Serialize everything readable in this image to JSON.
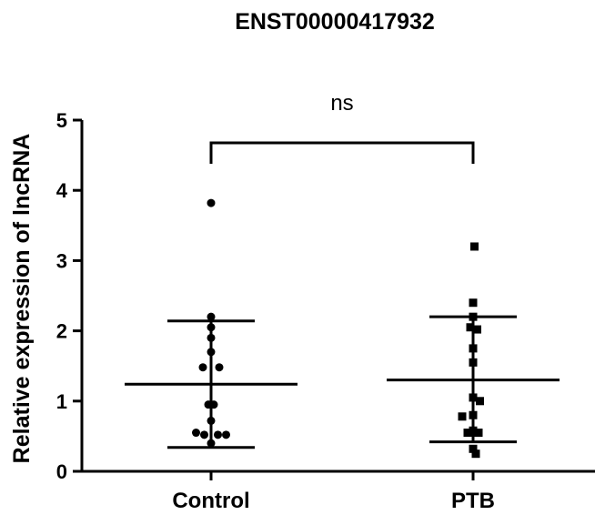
{
  "chart_data": {
    "type": "scatter",
    "title": "ENST00000417932",
    "ylabel": "Relative expression of lncRNA",
    "xlabel": "",
    "categories": [
      "Control",
      "PTB"
    ],
    "ylim": [
      0,
      5
    ],
    "yticks": [
      0,
      1,
      2,
      3,
      4,
      5
    ],
    "grid": false,
    "series": [
      {
        "category": "Control",
        "marker": "circle",
        "points": [
          {
            "offset": 0.0,
            "y": 3.82
          },
          {
            "offset": 0.0,
            "y": 2.2
          },
          {
            "offset": 0.0,
            "y": 2.05
          },
          {
            "offset": 0.0,
            "y": 1.9
          },
          {
            "offset": 0.0,
            "y": 1.7
          },
          {
            "offset": -0.3,
            "y": 1.48
          },
          {
            "offset": 0.3,
            "y": 1.48
          },
          {
            "offset": -0.1,
            "y": 0.95
          },
          {
            "offset": 0.1,
            "y": 0.95
          },
          {
            "offset": 0.0,
            "y": 0.72
          },
          {
            "offset": -0.55,
            "y": 0.55
          },
          {
            "offset": -0.25,
            "y": 0.52
          },
          {
            "offset": 0.25,
            "y": 0.52
          },
          {
            "offset": 0.55,
            "y": 0.52
          },
          {
            "offset": 0.0,
            "y": 0.4
          }
        ],
        "mean": 1.24,
        "sd_upper": 2.14,
        "sd_lower": 0.34
      },
      {
        "category": "PTB",
        "marker": "square",
        "points": [
          {
            "offset": 0.05,
            "y": 3.2
          },
          {
            "offset": 0.0,
            "y": 2.4
          },
          {
            "offset": 0.0,
            "y": 2.2
          },
          {
            "offset": -0.1,
            "y": 2.05
          },
          {
            "offset": 0.15,
            "y": 2.02
          },
          {
            "offset": 0.0,
            "y": 1.75
          },
          {
            "offset": 0.0,
            "y": 1.55
          },
          {
            "offset": 0.0,
            "y": 1.05
          },
          {
            "offset": 0.25,
            "y": 1.0
          },
          {
            "offset": 0.0,
            "y": 0.8
          },
          {
            "offset": -0.4,
            "y": 0.78
          },
          {
            "offset": 0.0,
            "y": 0.58
          },
          {
            "offset": -0.2,
            "y": 0.55
          },
          {
            "offset": 0.2,
            "y": 0.55
          },
          {
            "offset": 0.0,
            "y": 0.32
          },
          {
            "offset": 0.1,
            "y": 0.25
          }
        ],
        "mean": 1.3,
        "sd_upper": 2.2,
        "sd_lower": 0.42
      }
    ],
    "comparison": {
      "from": "Control",
      "to": "PTB",
      "label": "ns"
    }
  }
}
